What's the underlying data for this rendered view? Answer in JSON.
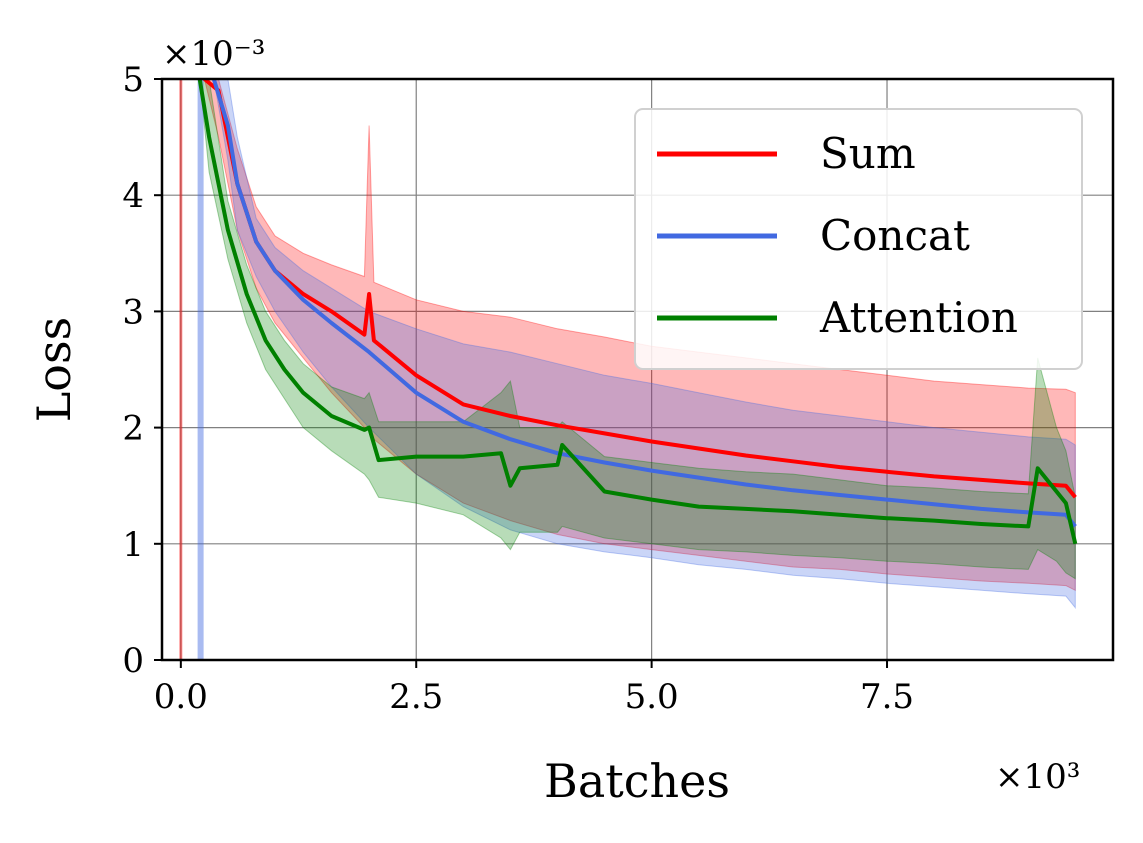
{
  "chart_data": {
    "type": "line",
    "title": "",
    "xlabel": "Batches",
    "ylabel": "Loss",
    "x_multiplier": "×10³",
    "y_multiplier": "×10⁻³",
    "xlim": [
      -0.2,
      9.9
    ],
    "ylim": [
      0,
      5
    ],
    "x_ticks": [
      0.0,
      2.5,
      5.0,
      7.5
    ],
    "x_tick_labels": [
      "0.0",
      "2.5",
      "5.0",
      "7.5"
    ],
    "y_ticks": [
      0,
      1,
      2,
      3,
      4,
      5
    ],
    "y_tick_labels": [
      "0",
      "1",
      "2",
      "3",
      "4",
      "5"
    ],
    "grid": true,
    "legend_position": "top-right",
    "series": [
      {
        "name": "Sum",
        "color": "#ff0000",
        "x": [
          0.25,
          0.4,
          0.6,
          0.8,
          1.0,
          1.3,
          1.6,
          1.95,
          2.0,
          2.05,
          2.5,
          3.0,
          3.5,
          4.0,
          4.5,
          5.0,
          5.5,
          6.0,
          6.5,
          7.0,
          7.5,
          8.0,
          8.5,
          9.0,
          9.4,
          9.5
        ],
        "values": [
          5.0,
          4.9,
          4.1,
          3.6,
          3.35,
          3.15,
          3.0,
          2.8,
          3.15,
          2.75,
          2.45,
          2.2,
          2.1,
          2.02,
          1.95,
          1.88,
          1.82,
          1.76,
          1.71,
          1.66,
          1.62,
          1.58,
          1.55,
          1.52,
          1.5,
          1.4
        ],
        "upper": [
          5.0,
          5.0,
          4.4,
          3.9,
          3.65,
          3.5,
          3.4,
          3.3,
          4.6,
          3.25,
          3.1,
          3.0,
          2.95,
          2.85,
          2.78,
          2.7,
          2.65,
          2.6,
          2.55,
          2.5,
          2.45,
          2.4,
          2.37,
          2.34,
          2.33,
          2.3
        ],
        "lower": [
          5.0,
          4.5,
          3.7,
          3.2,
          2.9,
          2.6,
          2.3,
          2.0,
          2.0,
          1.9,
          1.6,
          1.35,
          1.2,
          1.08,
          1.0,
          0.95,
          0.9,
          0.85,
          0.8,
          0.78,
          0.74,
          0.71,
          0.68,
          0.66,
          0.64,
          0.6
        ]
      },
      {
        "name": "Concat",
        "color": "#4169e1",
        "x": [
          0.35,
          0.5,
          0.6,
          0.8,
          1.0,
          1.3,
          1.6,
          2.0,
          2.5,
          3.0,
          3.5,
          4.0,
          4.5,
          5.0,
          5.5,
          6.0,
          6.5,
          7.0,
          7.5,
          8.0,
          8.5,
          9.0,
          9.4,
          9.5
        ],
        "values": [
          5.0,
          4.6,
          4.1,
          3.6,
          3.35,
          3.1,
          2.9,
          2.65,
          2.3,
          2.05,
          1.9,
          1.78,
          1.7,
          1.63,
          1.57,
          1.51,
          1.46,
          1.42,
          1.38,
          1.34,
          1.3,
          1.27,
          1.25,
          1.15
        ],
        "upper": [
          5.0,
          5.0,
          4.5,
          3.8,
          3.55,
          3.35,
          3.2,
          3.0,
          2.85,
          2.72,
          2.65,
          2.55,
          2.45,
          2.38,
          2.3,
          2.22,
          2.15,
          2.1,
          2.05,
          2.0,
          1.96,
          1.92,
          1.9,
          1.85
        ],
        "lower": [
          5.0,
          4.3,
          3.7,
          3.3,
          3.0,
          2.65,
          2.35,
          2.0,
          1.6,
          1.32,
          1.12,
          1.0,
          0.93,
          0.88,
          0.82,
          0.78,
          0.73,
          0.7,
          0.66,
          0.63,
          0.6,
          0.57,
          0.55,
          0.45
        ]
      },
      {
        "name": "Attention",
        "color": "#008000",
        "x": [
          0.2,
          0.3,
          0.5,
          0.7,
          0.9,
          1.1,
          1.3,
          1.6,
          1.95,
          2.0,
          2.1,
          2.5,
          3.0,
          3.4,
          3.5,
          3.6,
          4.0,
          4.05,
          4.5,
          5.0,
          5.5,
          6.0,
          6.5,
          7.0,
          7.5,
          8.0,
          8.5,
          9.0,
          9.1,
          9.3,
          9.4,
          9.5
        ],
        "values": [
          5.0,
          4.5,
          3.7,
          3.15,
          2.75,
          2.5,
          2.3,
          2.1,
          1.98,
          2.0,
          1.72,
          1.75,
          1.75,
          1.78,
          1.5,
          1.65,
          1.68,
          1.85,
          1.45,
          1.38,
          1.32,
          1.3,
          1.28,
          1.25,
          1.22,
          1.2,
          1.17,
          1.15,
          1.65,
          1.45,
          1.35,
          1.0
        ],
        "upper": [
          5.0,
          5.0,
          3.95,
          3.4,
          3.0,
          2.75,
          2.55,
          2.35,
          2.25,
          2.3,
          2.05,
          2.05,
          2.05,
          2.3,
          2.4,
          2.0,
          2.0,
          2.05,
          1.75,
          1.7,
          1.65,
          1.62,
          1.6,
          1.55,
          1.5,
          1.48,
          1.45,
          1.43,
          2.6,
          2.0,
          1.8,
          1.4
        ],
        "lower": [
          5.0,
          4.2,
          3.45,
          2.9,
          2.5,
          2.25,
          2.0,
          1.8,
          1.6,
          1.55,
          1.4,
          1.35,
          1.25,
          1.05,
          0.95,
          1.1,
          1.1,
          1.15,
          1.05,
          1.0,
          0.95,
          0.93,
          0.9,
          0.88,
          0.85,
          0.83,
          0.8,
          0.78,
          0.95,
          0.85,
          0.75,
          0.7
        ]
      }
    ]
  }
}
